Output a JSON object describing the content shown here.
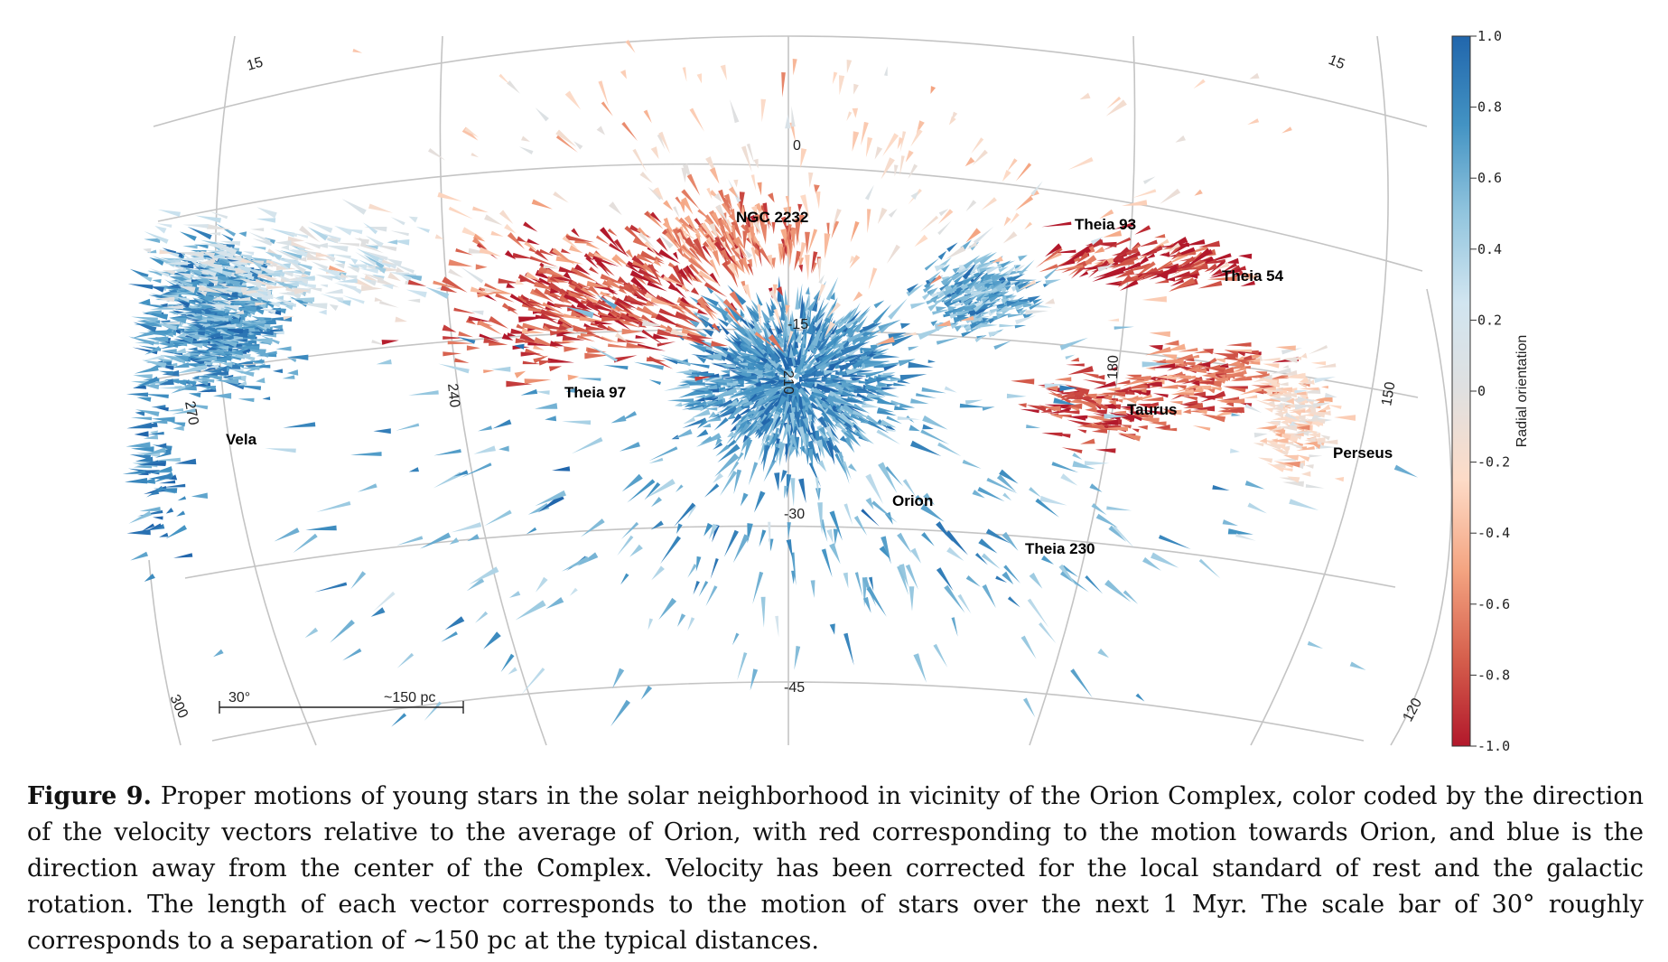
{
  "chart_data": {
    "type": "scatter",
    "projection": "galactic-allsky",
    "grid": true,
    "longitude_ticks": [
      "270",
      "240",
      "210",
      "180",
      "150",
      "120",
      "300"
    ],
    "latitude_ticks": [
      "15",
      "0",
      "-15",
      "-30",
      "-45"
    ],
    "latitude_side_ticks": [
      "15",
      "15"
    ],
    "regions": [
      {
        "name": "NGC 2232"
      },
      {
        "name": "Theia 93"
      },
      {
        "name": "Theia 54"
      },
      {
        "name": "Theia 97"
      },
      {
        "name": "Vela"
      },
      {
        "name": "Taurus"
      },
      {
        "name": "Perseus"
      },
      {
        "name": "Orion"
      },
      {
        "name": "Theia 230"
      }
    ],
    "colorbar": {
      "label": "Radial orientation",
      "range": [
        -1.0,
        1.0
      ],
      "ticks": [
        "1.0",
        "0.8",
        "0.6",
        "0.4",
        "0.2",
        "0",
        "-0.2",
        "-0.4",
        "-0.6",
        "-0.8",
        "-1.0"
      ],
      "colors": [
        "#b2182b",
        "#d6604d",
        "#f4a582",
        "#fddbc7",
        "#e0e0e0",
        "#d1e5f0",
        "#92c5de",
        "#4393c3",
        "#2166ac"
      ]
    },
    "scale_bar": {
      "angle": "30°",
      "distance": "~150 pc"
    }
  },
  "caption": {
    "label": "Figure 9.",
    "text": "Proper motions of young stars in the solar neighborhood in vicinity of the Orion Complex, color coded by the direction of the velocity vectors relative to the average of Orion, with red corresponding to the motion towards Orion, and blue is the direction away from the center of the Complex. Velocity has been corrected for the local standard of rest and the galactic rotation. The length of each vector corresponds to the motion of stars over the next 1 Myr. The scale bar of 30° roughly corresponds to a separation of ~150 pc at the typical distances."
  }
}
